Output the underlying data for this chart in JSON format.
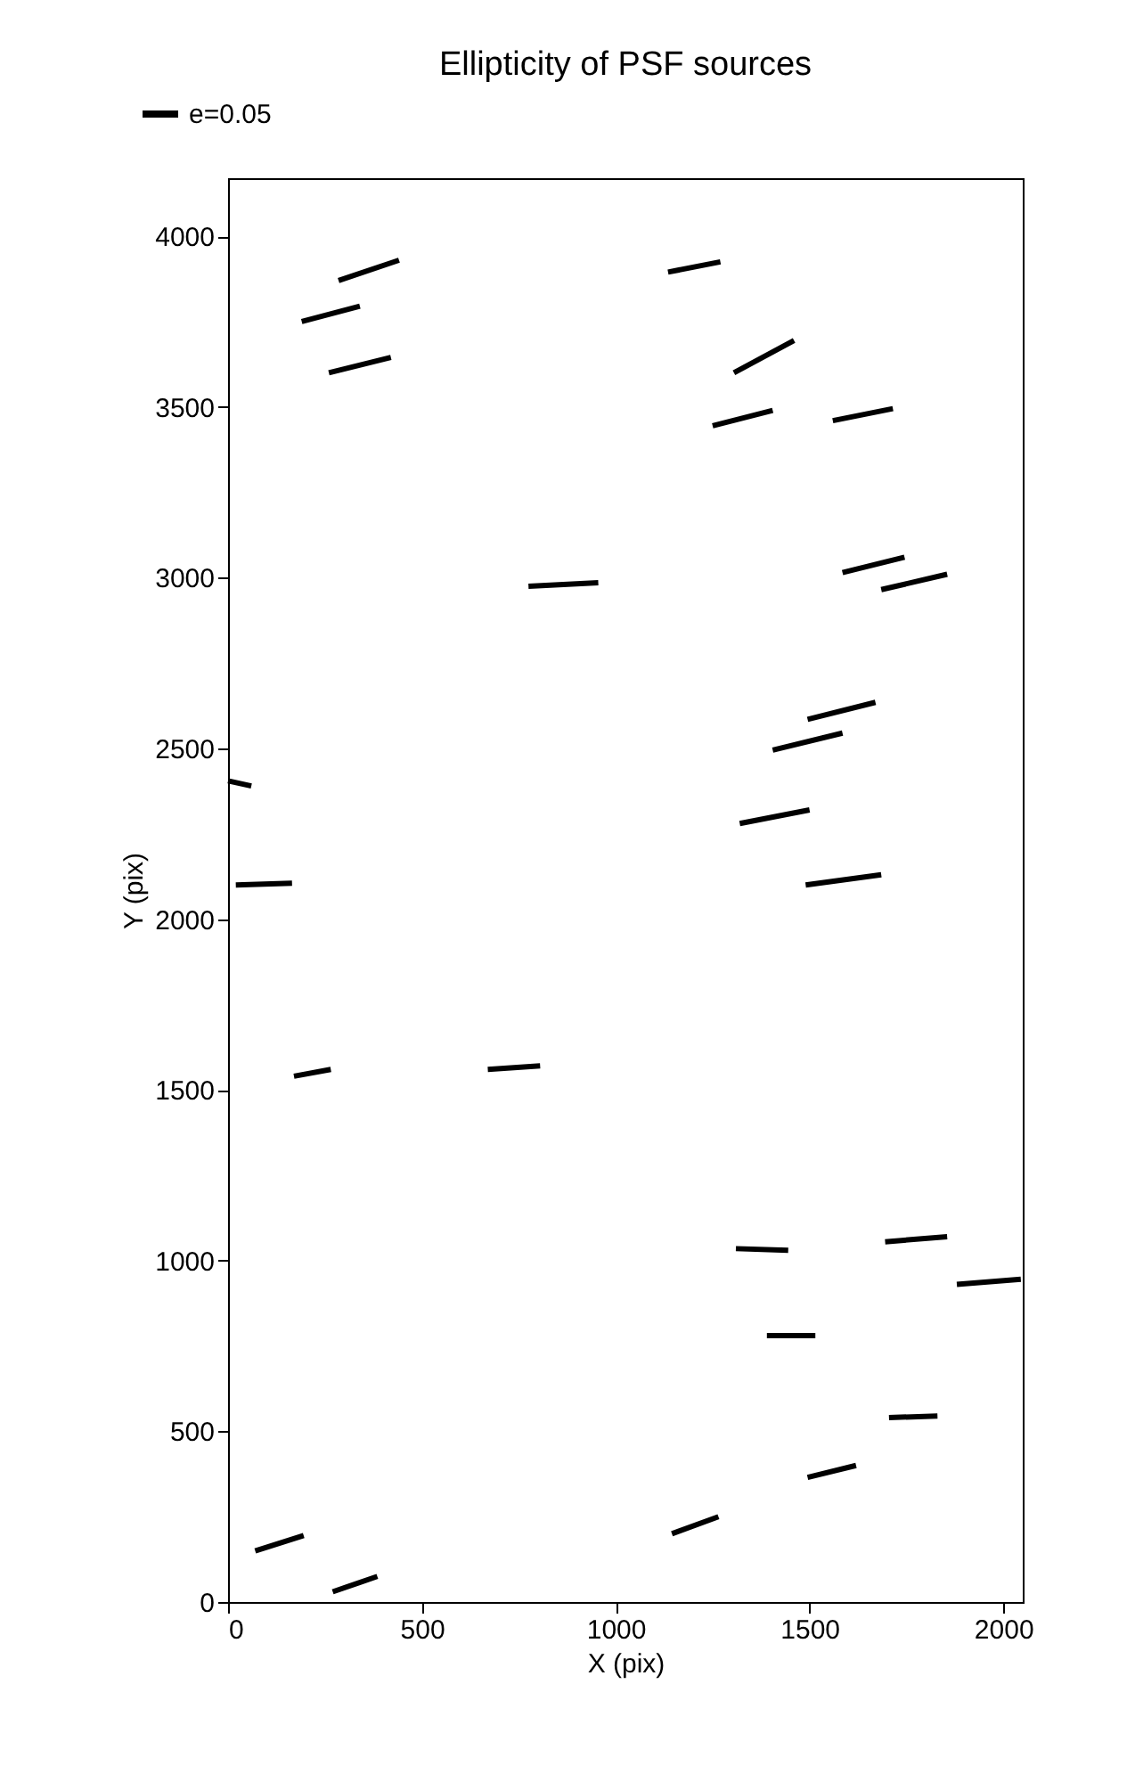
{
  "chart_data": {
    "type": "line",
    "title": "Ellipticity of PSF sources",
    "xlabel": "X (pix)",
    "ylabel": "Y (pix)",
    "xlim": [
      0,
      2050
    ],
    "ylim": [
      0,
      4170
    ],
    "xticks": [
      0,
      500,
      1000,
      1500,
      2000
    ],
    "yticks": [
      0,
      500,
      1000,
      1500,
      2000,
      2500,
      3000,
      3500,
      4000
    ],
    "grid": false,
    "legend": "top left",
    "marker": "none",
    "line_style": "solid",
    "series": [
      {
        "name": "e=0.05",
        "color": "#000000",
        "x": [
          285,
          441,
          null,
          190,
          340,
          null,
          260,
          420,
          null,
          1135,
          1270,
          null,
          1305,
          1460,
          null,
          1250,
          1405,
          null,
          1560,
          1715,
          null,
          775,
          955,
          null,
          1585,
          1745,
          null,
          1685,
          1855,
          null,
          1495,
          1670,
          null,
          1405,
          1585,
          null,
          0,
          60,
          null,
          20,
          165,
          null,
          1320,
          1500,
          null,
          1490,
          1685,
          null,
          170,
          265,
          null,
          670,
          805,
          null,
          1310,
          1445,
          null,
          1695,
          1855,
          null,
          1880,
          2045,
          null,
          1390,
          1515,
          null,
          1705,
          1830,
          null,
          1495,
          1620,
          null,
          1145,
          1265,
          null,
          70,
          195,
          null,
          270,
          385
        ],
        "values": [
          3870,
          3930,
          null,
          3750,
          3795,
          null,
          3600,
          3645,
          null,
          3895,
          3925,
          null,
          3600,
          3695,
          null,
          3445,
          3490,
          null,
          3460,
          3495,
          null,
          2975,
          2985,
          null,
          3015,
          3060,
          null,
          2965,
          3010,
          null,
          2585,
          2635,
          null,
          2495,
          2545,
          null,
          2405,
          2390,
          null,
          2100,
          2105,
          null,
          2280,
          2320,
          null,
          2100,
          2130,
          null,
          1540,
          1560,
          null,
          1560,
          1570,
          null,
          1035,
          1030,
          null,
          1055,
          1070,
          null,
          930,
          945,
          null,
          780,
          780,
          null,
          540,
          545,
          null,
          365,
          400,
          null,
          200,
          250,
          null,
          150,
          195,
          null,
          30,
          75
        ]
      }
    ]
  }
}
